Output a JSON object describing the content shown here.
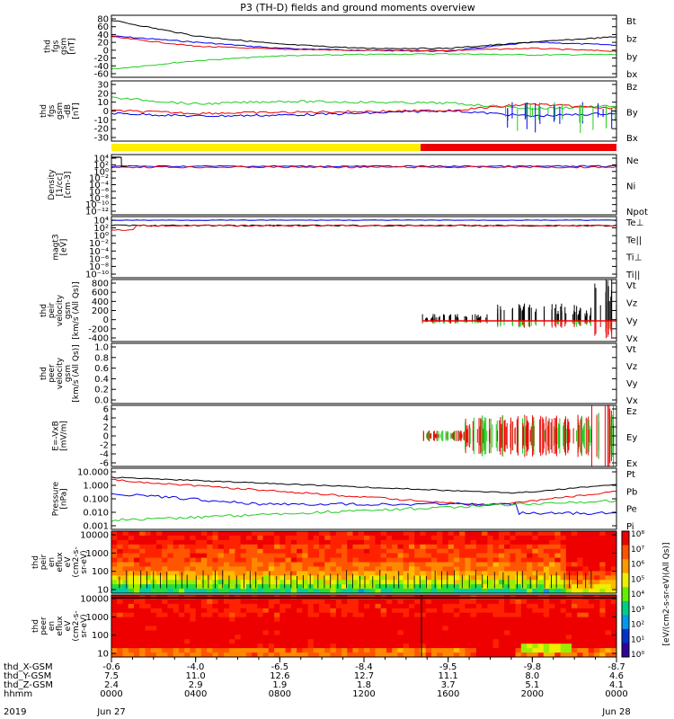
{
  "title": "P3 (TH-D) fields and ground moments overview",
  "colors": {
    "black": "#000000",
    "red": "#ee0000",
    "green": "#22cc22",
    "blue": "#0000ee",
    "yellow": "#ffee00",
    "bar_red": "#ee0000"
  },
  "panels": [
    {
      "id": "p1",
      "ylabel": [
        "thd",
        "fgs",
        "gsm",
        "[nT]"
      ],
      "ticks": [
        "80",
        "60",
        "40",
        "20",
        "0",
        "-20",
        "-40",
        "-60"
      ],
      "ylim": [
        -60,
        90
      ],
      "legend": [
        {
          "t": "Bt",
          "c": "black"
        },
        {
          "t": "bz",
          "c": "red"
        },
        {
          "t": "by",
          "c": "green"
        },
        {
          "t": "bx",
          "c": "blue"
        }
      ]
    },
    {
      "id": "p2",
      "ylabel": [
        "thd",
        "fgs",
        "gsm",
        "-dB",
        "[nT]"
      ],
      "ticks": [
        "30",
        "20",
        "10",
        "0",
        "-10",
        "-20",
        "-30"
      ],
      "ylim": [
        -35,
        30
      ],
      "legend": [
        {
          "t": "Bz",
          "c": "red"
        },
        {
          "t": "By",
          "c": "green"
        },
        {
          "t": "Bx",
          "c": "blue"
        }
      ]
    },
    {
      "id": "p3",
      "ylabel": [
        "Density",
        "[1/cc]",
        "[cm-3]"
      ],
      "ticks": [
        "10⁴",
        "10²",
        "10⁰",
        "10⁻²",
        "10⁻⁴",
        "10⁻⁶",
        "10⁻⁸",
        "10⁻¹⁰",
        "10⁻¹²"
      ],
      "legend": [
        {
          "t": "Ne",
          "c": "red"
        },
        {
          "t": "Ni",
          "c": "black"
        },
        {
          "t": "Npot",
          "c": "blue"
        }
      ]
    },
    {
      "id": "p4",
      "ylabel": [
        "magt3",
        "[eV]"
      ],
      "ticks": [
        "10⁴",
        "10²",
        "10⁰",
        "10⁻²",
        "10⁻⁴",
        "10⁻⁶",
        "10⁻⁸",
        "10⁻¹⁰"
      ],
      "legend": [
        {
          "t": "Te⊥",
          "c": "red"
        },
        {
          "t": "Te||",
          "c": "black"
        },
        {
          "t": "Ti⊥",
          "c": "blue"
        },
        {
          "t": "Ti||",
          "c": "green"
        }
      ]
    },
    {
      "id": "p5",
      "ylabel": [
        "thd",
        "peir",
        "velocity",
        "gsm",
        "[km/s (All Qs)]"
      ],
      "ticks": [
        "800",
        "600",
        "400",
        "200",
        "0",
        "-200",
        "-400"
      ],
      "ylim": [
        -400,
        800
      ],
      "legend": [
        {
          "t": "Vt",
          "c": "black"
        },
        {
          "t": "Vz",
          "c": "red"
        },
        {
          "t": "Vy",
          "c": "green"
        },
        {
          "t": "Vx",
          "c": "blue"
        }
      ]
    },
    {
      "id": "p6",
      "ylabel": [
        "thd",
        "peer",
        "velocity",
        "gsm",
        "[km/s (All Qs)]"
      ],
      "ticks": [
        "1.0",
        "0.8",
        "0.6",
        "0.4",
        "0.2",
        "0.0"
      ],
      "ylim": [
        0,
        1
      ],
      "legend": [
        {
          "t": "Vt",
          "c": "black"
        },
        {
          "t": "Vz",
          "c": "red"
        },
        {
          "t": "Vy",
          "c": "green"
        },
        {
          "t": "Vx",
          "c": "blue"
        }
      ]
    },
    {
      "id": "p7",
      "ylabel": [
        "E=-VxB",
        "[mV/m]"
      ],
      "ticks": [
        "6",
        "4",
        "2",
        "0",
        "-2",
        "-4",
        "-6"
      ],
      "ylim": [
        -6,
        6
      ],
      "legend": [
        {
          "t": "Ez",
          "c": "red"
        },
        {
          "t": "Ey",
          "c": "green"
        },
        {
          "t": "Ex",
          "c": "blue"
        }
      ]
    },
    {
      "id": "p8",
      "ylabel": [
        "Pressure",
        "[nPa]"
      ],
      "ticks": [
        "10.000",
        "1.000",
        "0.100",
        "0.010",
        "0.001"
      ],
      "legend": [
        {
          "t": "Pt",
          "c": "black"
        },
        {
          "t": "Pb",
          "c": "red"
        },
        {
          "t": "Pe",
          "c": "green"
        },
        {
          "t": "Pi",
          "c": "blue"
        }
      ]
    },
    {
      "id": "p9",
      "ylabel": [
        "thd",
        "peir",
        "en",
        "eflux",
        "eV",
        "(cm2-s-",
        "sr-eV)"
      ],
      "ticks": [
        "10000",
        "1000",
        "100",
        "10"
      ]
    },
    {
      "id": "p10",
      "ylabel": [
        "thd",
        "peer",
        "en",
        "eflux",
        "eV",
        "(cm2-s-",
        "sr-eV)"
      ],
      "ticks": [
        "10000",
        "1000",
        "100",
        "10"
      ]
    }
  ],
  "colorbar": {
    "ticks": [
      "10⁸",
      "10⁷",
      "10⁶",
      "10⁵",
      "10⁴",
      "10³",
      "10²",
      "10¹",
      "10⁰"
    ],
    "label": "[eV/(cm2-s-sr-eV)(All Qs)]"
  },
  "xaxis": {
    "rows": [
      {
        "label": "thd_X-GSM",
        "vals": [
          "-0.6",
          "-4.0",
          "-6.5",
          "-8.4",
          "-9.5",
          "-9.8",
          "-8.7"
        ]
      },
      {
        "label": "thd_Y-GSM",
        "vals": [
          "7.5",
          "11.0",
          "12.6",
          "12.7",
          "11.1",
          "8.0",
          "4.6"
        ]
      },
      {
        "label": "thd_Z-GSM",
        "vals": [
          "2.4",
          "2.9",
          "1.9",
          "1.8",
          "3.7",
          "5.1",
          "4.1"
        ]
      },
      {
        "label": "hhmm",
        "vals": [
          "0000",
          "0400",
          "0800",
          "1200",
          "1600",
          "2000",
          "0000"
        ]
      }
    ],
    "year": "2019",
    "date_start": "Jun 27",
    "date_end": "Jun 28"
  },
  "chart_data": [
    {
      "type": "line",
      "panel": "p1",
      "x": [
        "0000",
        "0400",
        "0800",
        "1200",
        "1600",
        "2000",
        "0000"
      ],
      "series": [
        {
          "name": "Bt",
          "values": [
            78,
            40,
            20,
            10,
            10,
            25,
            38
          ]
        },
        {
          "name": "bz",
          "values": [
            38,
            15,
            8,
            5,
            5,
            10,
            3
          ]
        },
        {
          "name": "by",
          "values": [
            -40,
            -20,
            -8,
            -5,
            -3,
            -6,
            -5
          ]
        },
        {
          "name": "bx",
          "values": [
            40,
            25,
            10,
            5,
            3,
            25,
            18
          ]
        }
      ]
    },
    {
      "type": "line",
      "panel": "p2",
      "x": [
        "0000",
        "0400",
        "0800",
        "1200",
        "1600",
        "2000",
        "0000"
      ],
      "series": [
        {
          "name": "Bz",
          "values": [
            -2,
            -5,
            -4,
            -3,
            -2,
            5,
            0
          ]
        },
        {
          "name": "By",
          "values": [
            12,
            5,
            8,
            7,
            6,
            0,
            3
          ]
        },
        {
          "name": "Bx",
          "values": [
            -5,
            -8,
            -7,
            -5,
            -2,
            -8,
            -5
          ]
        }
      ]
    },
    {
      "type": "line",
      "panel": "p5",
      "x": [
        "1600",
        "2000",
        "0000"
      ],
      "series": [
        {
          "name": "Vt",
          "values": [
            30,
            100,
            600
          ]
        }
      ]
    },
    {
      "type": "line",
      "panel": "p7",
      "x": [
        "1600",
        "2000",
        "0000"
      ],
      "series": [
        {
          "name": "Ez",
          "values": [
            0,
            1.5,
            4
          ]
        },
        {
          "name": "Ey",
          "values": [
            0,
            -1,
            -3
          ]
        }
      ]
    },
    {
      "type": "heatmap",
      "panel": "p9",
      "x": [
        "0000",
        "0400",
        "0800",
        "1200",
        "1600",
        "2000",
        "0000"
      ],
      "y_energy": [
        10,
        100,
        1000,
        10000
      ]
    },
    {
      "type": "heatmap",
      "panel": "p10",
      "x": [
        "0000",
        "0400",
        "0800",
        "1200",
        "1600",
        "2000",
        "0000"
      ],
      "y_energy": [
        10,
        100,
        1000,
        10000
      ]
    }
  ]
}
